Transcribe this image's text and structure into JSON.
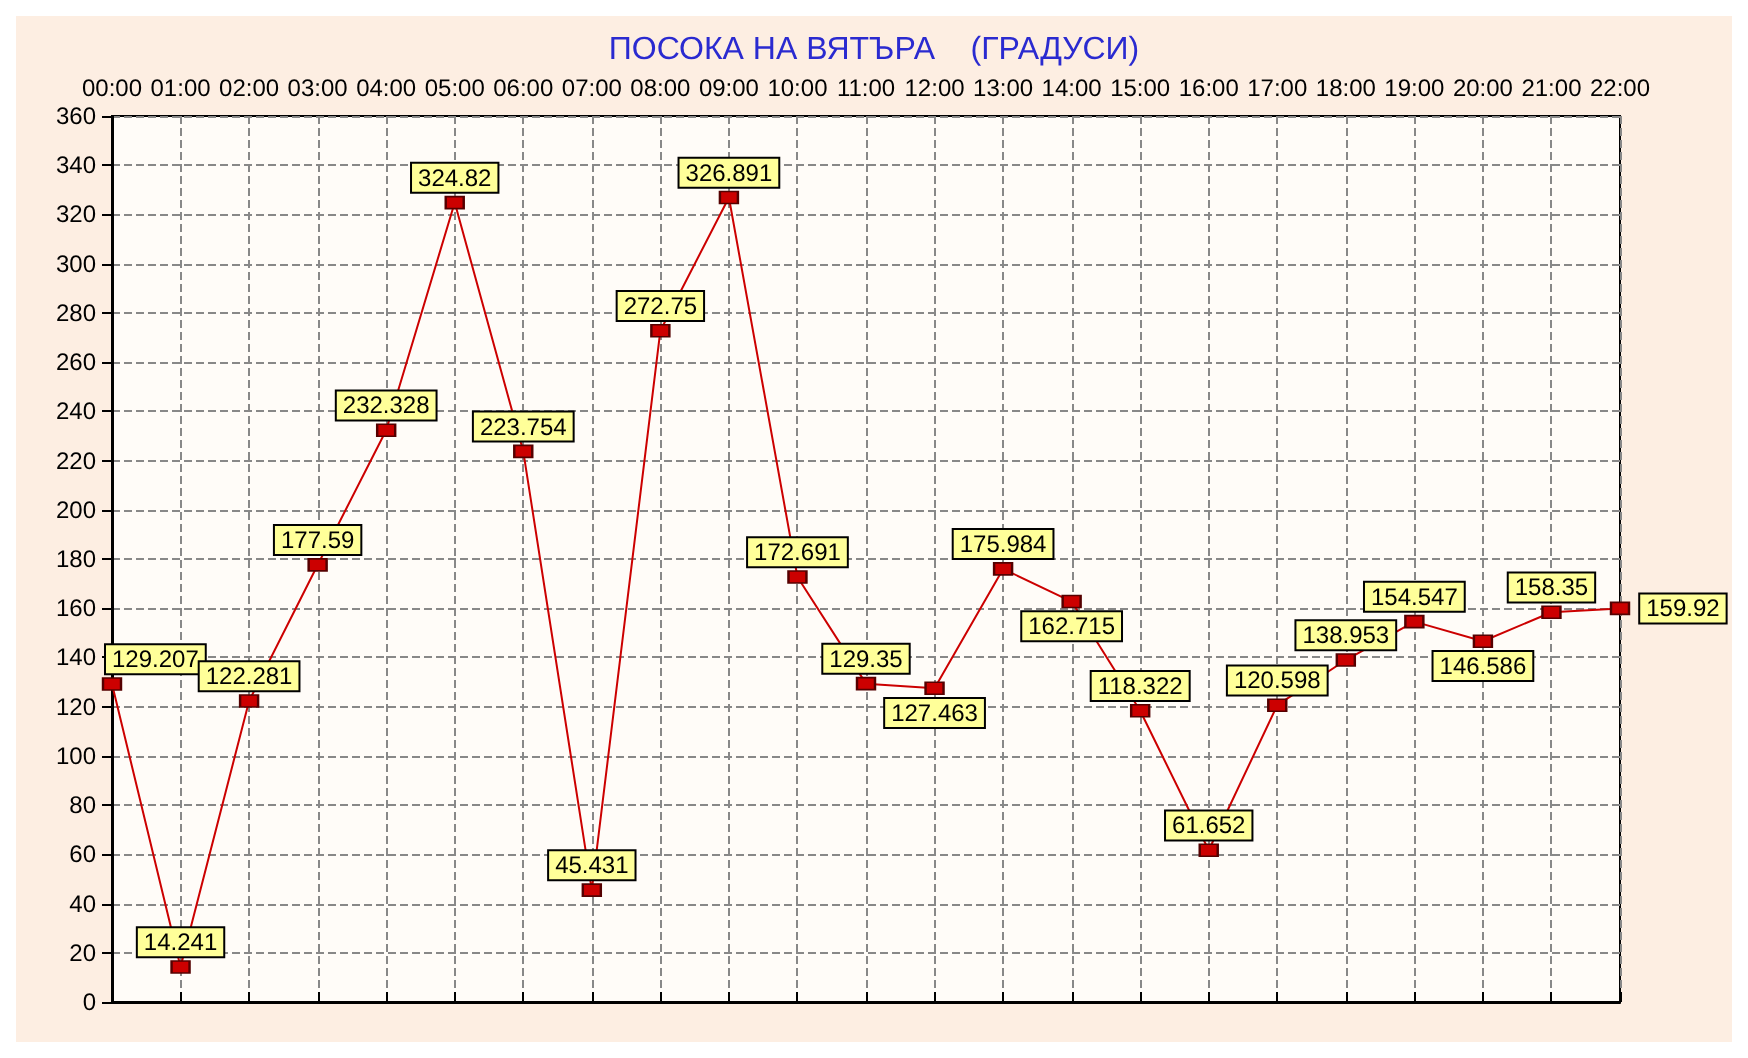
{
  "chart_data": {
    "type": "line",
    "title": "ПОСОКА НА ВЯТЪРА    (ГРАДУСИ)",
    "categories": [
      "00:00",
      "01:00",
      "02:00",
      "03:00",
      "04:00",
      "05:00",
      "06:00",
      "07:00",
      "08:00",
      "09:00",
      "10:00",
      "11:00",
      "12:00",
      "13:00",
      "14:00",
      "15:00",
      "16:00",
      "17:00",
      "18:00",
      "19:00",
      "20:00",
      "21:00",
      "22:00"
    ],
    "series": [
      {
        "color": "#cc0000",
        "values": [
          129.207,
          14.241,
          122.281,
          177.59,
          232.328,
          324.82,
          223.754,
          45.431,
          272.75,
          326.891,
          172.691,
          129.35,
          127.463,
          175.984,
          162.715,
          118.322,
          61.652,
          120.598,
          138.953,
          154.547,
          146.586,
          158.35,
          159.92
        ]
      }
    ],
    "ylim": [
      0,
      360
    ],
    "yticks": [
      0,
      20,
      40,
      60,
      80,
      100,
      120,
      140,
      160,
      180,
      200,
      220,
      240,
      260,
      280,
      300,
      320,
      340,
      360
    ],
    "grid": true,
    "data_labels": true,
    "marker": "square",
    "line_style": "solid"
  }
}
